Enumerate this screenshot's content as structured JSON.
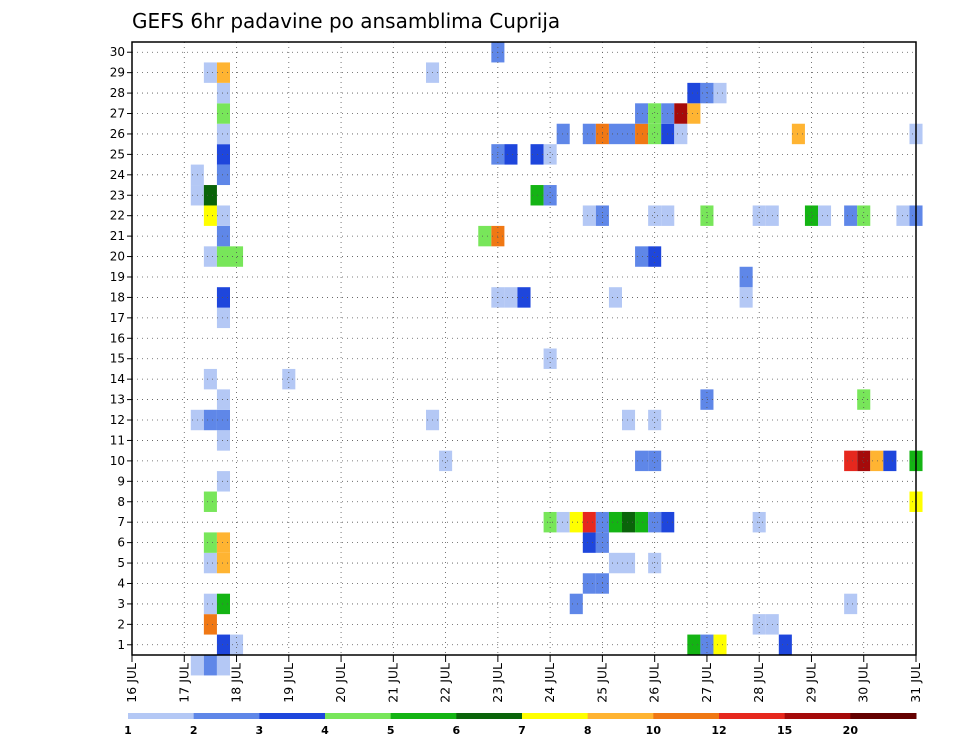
{
  "chart_data": {
    "type": "heatmap",
    "title": "GEFS 6hr padavine po ansamblima Cuprija",
    "xlabel": "",
    "ylabel": "",
    "x_start": "16 JUL",
    "x_ticks": [
      "16 JUL",
      "17 JUL",
      "18 JUL",
      "19 JUL",
      "20 JUL",
      "21 JUL",
      "22 JUL",
      "23 JUL",
      "24 JUL",
      "25 JUL",
      "26 JUL",
      "27 JUL",
      "28 JUL",
      "29 JUL",
      "30 JUL",
      "31 JUL"
    ],
    "y_ticks": [
      "1",
      "2",
      "3",
      "4",
      "5",
      "6",
      "7",
      "8",
      "9",
      "10",
      "11",
      "12",
      "13",
      "14",
      "15",
      "16",
      "17",
      "18",
      "19",
      "20",
      "21",
      "22",
      "23",
      "24",
      "25",
      "26",
      "27",
      "28",
      "29",
      "30"
    ],
    "xlim": [
      0,
      60
    ],
    "ylim": [
      0.5,
      30.5
    ],
    "grid": true,
    "colorbar": {
      "labels": [
        "1",
        "2",
        "3",
        "4",
        "5",
        "6",
        "7",
        "8",
        "10",
        "12",
        "15",
        "20"
      ],
      "colors": [
        "#b4c8f5",
        "#5f87e8",
        "#1e46dc",
        "#78e65a",
        "#14b414",
        "#0a640a",
        "#ffff00",
        "#ffb432",
        "#f07814",
        "#e6281e",
        "#a50a0a",
        "#640000"
      ]
    },
    "cells": [
      {
        "t": 5,
        "m": 0,
        "v": 1.5
      },
      {
        "t": 6,
        "m": 0,
        "v": 2.5
      },
      {
        "t": 7,
        "m": 0,
        "v": 1.5
      },
      {
        "t": 7,
        "m": 1,
        "v": 3.5
      },
      {
        "t": 8,
        "m": 1,
        "v": 1.5
      },
      {
        "t": 43,
        "m": 1,
        "v": 5.5
      },
      {
        "t": 44,
        "m": 1,
        "v": 2.5
      },
      {
        "t": 45,
        "m": 1,
        "v": 7.5
      },
      {
        "t": 50,
        "m": 1,
        "v": 3.5
      },
      {
        "t": 6,
        "m": 2,
        "v": 11
      },
      {
        "t": 48,
        "m": 2,
        "v": 1.5
      },
      {
        "t": 49,
        "m": 2,
        "v": 1.5
      },
      {
        "t": 6,
        "m": 3,
        "v": 1.5
      },
      {
        "t": 7,
        "m": 3,
        "v": 5.5
      },
      {
        "t": 34,
        "m": 3,
        "v": 2.5
      },
      {
        "t": 55,
        "m": 3,
        "v": 1.5
      },
      {
        "t": 35,
        "m": 4,
        "v": 2.5
      },
      {
        "t": 36,
        "m": 4,
        "v": 2.5
      },
      {
        "t": 6,
        "m": 5,
        "v": 1.5
      },
      {
        "t": 7,
        "m": 5,
        "v": 9
      },
      {
        "t": 37,
        "m": 5,
        "v": 1.5
      },
      {
        "t": 38,
        "m": 5,
        "v": 1.5
      },
      {
        "t": 40,
        "m": 5,
        "v": 1.5
      },
      {
        "t": 6,
        "m": 6,
        "v": 4.5
      },
      {
        "t": 7,
        "m": 6,
        "v": 9
      },
      {
        "t": 35,
        "m": 6,
        "v": 3.5
      },
      {
        "t": 36,
        "m": 6,
        "v": 2.5
      },
      {
        "t": 32,
        "m": 7,
        "v": 4.5
      },
      {
        "t": 33,
        "m": 7,
        "v": 1.5
      },
      {
        "t": 34,
        "m": 7,
        "v": 7.5
      },
      {
        "t": 35,
        "m": 7,
        "v": 13
      },
      {
        "t": 36,
        "m": 7,
        "v": 2.5
      },
      {
        "t": 37,
        "m": 7,
        "v": 5.5
      },
      {
        "t": 38,
        "m": 7,
        "v": 6.5
      },
      {
        "t": 39,
        "m": 7,
        "v": 5.5
      },
      {
        "t": 40,
        "m": 7,
        "v": 2.5
      },
      {
        "t": 41,
        "m": 7,
        "v": 3.5
      },
      {
        "t": 48,
        "m": 7,
        "v": 1.5
      },
      {
        "t": 6,
        "m": 8,
        "v": 4.5
      },
      {
        "t": 60,
        "m": 8,
        "v": 7.5
      },
      {
        "t": 7,
        "m": 9,
        "v": 1.5
      },
      {
        "t": 24,
        "m": 10,
        "v": 1.5
      },
      {
        "t": 39,
        "m": 10,
        "v": 2.5
      },
      {
        "t": 40,
        "m": 10,
        "v": 2.5
      },
      {
        "t": 55,
        "m": 10,
        "v": 13
      },
      {
        "t": 56,
        "m": 10,
        "v": 17
      },
      {
        "t": 57,
        "m": 10,
        "v": 9
      },
      {
        "t": 58,
        "m": 10,
        "v": 3.5
      },
      {
        "t": 60,
        "m": 10,
        "v": 5.5
      },
      {
        "t": 7,
        "m": 11,
        "v": 1.5
      },
      {
        "t": 5,
        "m": 12,
        "v": 1.5
      },
      {
        "t": 6,
        "m": 12,
        "v": 2.5
      },
      {
        "t": 7,
        "m": 12,
        "v": 2.5
      },
      {
        "t": 23,
        "m": 12,
        "v": 1.5
      },
      {
        "t": 38,
        "m": 12,
        "v": 1.5
      },
      {
        "t": 40,
        "m": 12,
        "v": 1.5
      },
      {
        "t": 7,
        "m": 13,
        "v": 1.5
      },
      {
        "t": 44,
        "m": 13,
        "v": 2.5
      },
      {
        "t": 56,
        "m": 13,
        "v": 4.5
      },
      {
        "t": 6,
        "m": 14,
        "v": 1.5
      },
      {
        "t": 12,
        "m": 14,
        "v": 1.5
      },
      {
        "t": 32,
        "m": 15,
        "v": 1.5
      },
      {
        "t": 7,
        "m": 17,
        "v": 1.5
      },
      {
        "t": 7,
        "m": 18,
        "v": 3.5
      },
      {
        "t": 28,
        "m": 18,
        "v": 1.5
      },
      {
        "t": 29,
        "m": 18,
        "v": 1.5
      },
      {
        "t": 30,
        "m": 18,
        "v": 3.5
      },
      {
        "t": 37,
        "m": 18,
        "v": 1.5
      },
      {
        "t": 47,
        "m": 18,
        "v": 1.5
      },
      {
        "t": 47,
        "m": 19,
        "v": 2.5
      },
      {
        "t": 6,
        "m": 20,
        "v": 1.5
      },
      {
        "t": 7,
        "m": 20,
        "v": 4.5
      },
      {
        "t": 8,
        "m": 20,
        "v": 4.5
      },
      {
        "t": 39,
        "m": 20,
        "v": 2.5
      },
      {
        "t": 40,
        "m": 20,
        "v": 3.5
      },
      {
        "t": 7,
        "m": 21,
        "v": 2.5
      },
      {
        "t": 27,
        "m": 21,
        "v": 4.5
      },
      {
        "t": 28,
        "m": 21,
        "v": 11
      },
      {
        "t": 6,
        "m": 22,
        "v": 7.5
      },
      {
        "t": 7,
        "m": 22,
        "v": 1.5
      },
      {
        "t": 35,
        "m": 22,
        "v": 1.5
      },
      {
        "t": 36,
        "m": 22,
        "v": 2.5
      },
      {
        "t": 40,
        "m": 22,
        "v": 1.5
      },
      {
        "t": 41,
        "m": 22,
        "v": 1.5
      },
      {
        "t": 44,
        "m": 22,
        "v": 4.5
      },
      {
        "t": 48,
        "m": 22,
        "v": 1.5
      },
      {
        "t": 49,
        "m": 22,
        "v": 1.5
      },
      {
        "t": 52,
        "m": 22,
        "v": 5.5
      },
      {
        "t": 53,
        "m": 22,
        "v": 1.5
      },
      {
        "t": 55,
        "m": 22,
        "v": 2.5
      },
      {
        "t": 56,
        "m": 22,
        "v": 4.5
      },
      {
        "t": 59,
        "m": 22,
        "v": 1.5
      },
      {
        "t": 60,
        "m": 22,
        "v": 2.5
      },
      {
        "t": 5,
        "m": 23,
        "v": 1.5
      },
      {
        "t": 6,
        "m": 23,
        "v": 6.5
      },
      {
        "t": 31,
        "m": 23,
        "v": 5.5
      },
      {
        "t": 32,
        "m": 23,
        "v": 2.5
      },
      {
        "t": 5,
        "m": 24,
        "v": 1.5
      },
      {
        "t": 7,
        "m": 24,
        "v": 2.5
      },
      {
        "t": 7,
        "m": 25,
        "v": 3.5
      },
      {
        "t": 28,
        "m": 25,
        "v": 2.5
      },
      {
        "t": 29,
        "m": 25,
        "v": 3.5
      },
      {
        "t": 31,
        "m": 25,
        "v": 3.5
      },
      {
        "t": 32,
        "m": 25,
        "v": 1.5
      },
      {
        "t": 7,
        "m": 26,
        "v": 1.5
      },
      {
        "t": 33,
        "m": 26,
        "v": 2.5
      },
      {
        "t": 35,
        "m": 26,
        "v": 2.5
      },
      {
        "t": 36,
        "m": 26,
        "v": 11
      },
      {
        "t": 37,
        "m": 26,
        "v": 2.5
      },
      {
        "t": 38,
        "m": 26,
        "v": 2.5
      },
      {
        "t": 39,
        "m": 26,
        "v": 11
      },
      {
        "t": 40,
        "m": 26,
        "v": 4.5
      },
      {
        "t": 41,
        "m": 26,
        "v": 3.5
      },
      {
        "t": 42,
        "m": 26,
        "v": 1.5
      },
      {
        "t": 51,
        "m": 26,
        "v": 9
      },
      {
        "t": 60,
        "m": 26,
        "v": 1.5
      },
      {
        "t": 7,
        "m": 27,
        "v": 4.5
      },
      {
        "t": 39,
        "m": 27,
        "v": 2.5
      },
      {
        "t": 40,
        "m": 27,
        "v": 4.5
      },
      {
        "t": 41,
        "m": 27,
        "v": 2.5
      },
      {
        "t": 42,
        "m": 27,
        "v": 17
      },
      {
        "t": 43,
        "m": 27,
        "v": 9
      },
      {
        "t": 7,
        "m": 28,
        "v": 1.5
      },
      {
        "t": 43,
        "m": 28,
        "v": 3.5
      },
      {
        "t": 44,
        "m": 28,
        "v": 2.5
      },
      {
        "t": 45,
        "m": 28,
        "v": 1.5
      },
      {
        "t": 6,
        "m": 29,
        "v": 1.5
      },
      {
        "t": 7,
        "m": 29,
        "v": 9
      },
      {
        "t": 23,
        "m": 29,
        "v": 1.5
      },
      {
        "t": 28,
        "m": 30,
        "v": 2.5
      }
    ]
  }
}
